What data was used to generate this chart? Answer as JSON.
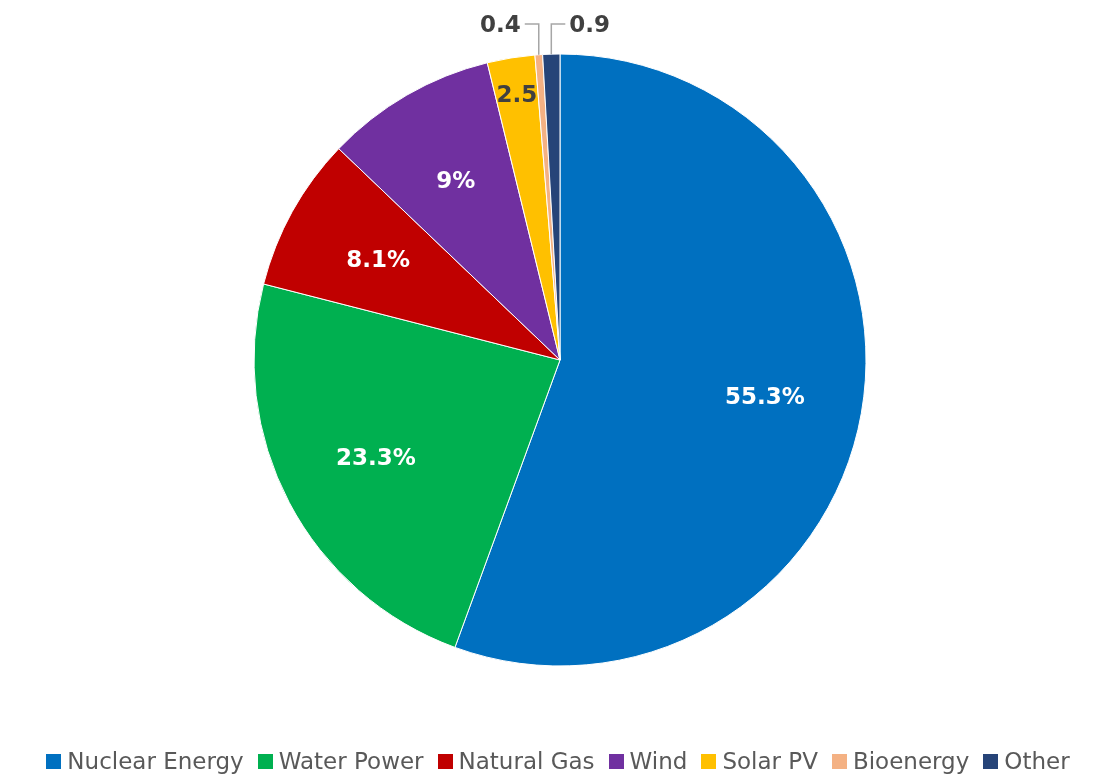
{
  "chart_data": {
    "type": "pie",
    "categories": [
      "Nuclear Energy",
      "Water Power",
      "Natural Gas",
      "Wind",
      "Solar PV",
      "Bioenergy",
      "Other"
    ],
    "values": [
      55.3,
      23.3,
      8.1,
      9,
      2.5,
      0.4,
      0.9
    ],
    "colors": [
      "#0070c0",
      "#00b050",
      "#c00000",
      "#7030a0",
      "#ffc000",
      "#f4b183",
      "#264478"
    ],
    "value_labels": [
      "55.3%",
      "23.3%",
      "8.1%",
      "9%",
      "2.5",
      "0.4",
      "0.9"
    ],
    "legend": "bottom"
  }
}
